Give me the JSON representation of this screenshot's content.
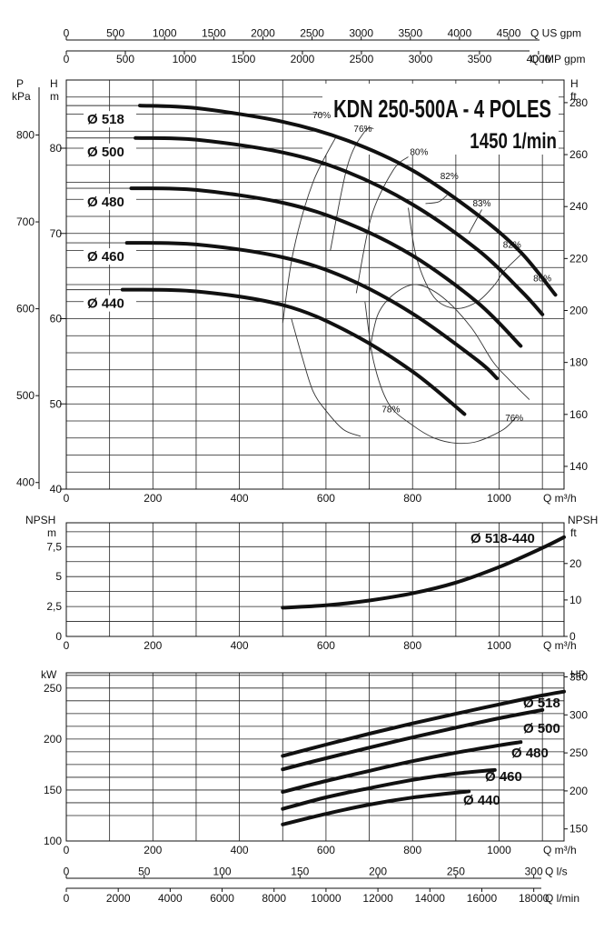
{
  "chart_data": [
    {
      "type": "line",
      "title": "KDN 250-500A - 4 POLES",
      "subtitle": "1450 1/min",
      "top_axes": [
        {
          "label": "Q US gpm",
          "ticks": [
            0,
            500,
            1000,
            1500,
            2000,
            2500,
            3000,
            3500,
            4000,
            4500
          ]
        },
        {
          "label": "Q IMP gpm",
          "ticks": [
            0,
            500,
            1000,
            1500,
            2000,
            2500,
            3000,
            3500,
            4000
          ]
        }
      ],
      "xlabel": "Q m³/h",
      "xlim": [
        0,
        1150
      ],
      "x_ticks": [
        0,
        200,
        400,
        600,
        800,
        1000
      ],
      "ylabel": "H m",
      "ylim": [
        40,
        88
      ],
      "y_ticks": [
        40,
        50,
        60,
        70,
        80
      ],
      "y_left_outer_label": "P kPa",
      "y_left_outer_ticks": [
        400,
        500,
        600,
        700,
        800
      ],
      "y_right_label": "H ft",
      "y_right_ticks": [
        140,
        160,
        180,
        200,
        220,
        240,
        260,
        280
      ],
      "series": [
        {
          "name": "Ø 518",
          "x": [
            0,
            300,
            500,
            650,
            800,
            950,
            1050,
            1130
          ],
          "y": [
            85,
            84.7,
            83.1,
            80.9,
            77.4,
            72.2,
            67.8,
            62.8
          ]
        },
        {
          "name": "Ø 500",
          "x": [
            0,
            300,
            500,
            650,
            800,
            950,
            1050,
            1100
          ],
          "y": [
            81.2,
            81,
            79.5,
            77.2,
            73.4,
            68.1,
            63.3,
            60.5
          ]
        },
        {
          "name": "Ø 480",
          "x": [
            0,
            300,
            500,
            650,
            800,
            950,
            1050
          ],
          "y": [
            75.3,
            75.1,
            73.6,
            71.2,
            67.4,
            61.9,
            56.8
          ]
        },
        {
          "name": "Ø 460",
          "x": [
            0,
            300,
            500,
            650,
            800,
            950,
            995
          ],
          "y": [
            68.9,
            68.7,
            67.2,
            64.7,
            60.6,
            55.1,
            53
          ]
        },
        {
          "name": "Ø 440",
          "x": [
            0,
            300,
            500,
            650,
            800,
            920
          ],
          "y": [
            63.4,
            63.2,
            61.6,
            58.5,
            53.8,
            48.8
          ]
        }
      ],
      "efficiency_labels": [
        "70%",
        "76%",
        "80%",
        "82%",
        "83%",
        "82%",
        "80%",
        "78%",
        "76%"
      ]
    },
    {
      "type": "line",
      "xlabel": "Q m³/h",
      "xlim": [
        0,
        1150
      ],
      "x_ticks": [
        0,
        200,
        400,
        600,
        800,
        1000
      ],
      "ylabel": "NPSH m",
      "ylim": [
        0,
        9.5
      ],
      "y_ticks": [
        "0",
        "2,5",
        "5",
        "7,5"
      ],
      "y_right_label": "NPSH ft",
      "y_right_ticks": [
        0,
        10,
        20
      ],
      "series": [
        {
          "name": "Ø 518-440",
          "x": [
            500,
            600,
            700,
            800,
            900,
            1000,
            1100,
            1150
          ],
          "y": [
            2.4,
            2.6,
            3.0,
            3.6,
            4.5,
            5.8,
            7.4,
            8.3
          ]
        }
      ]
    },
    {
      "type": "line",
      "xlabel": "Q m³/h",
      "xlim": [
        0,
        1150
      ],
      "x_ticks": [
        0,
        200,
        400,
        600,
        800,
        1000
      ],
      "ylabel": "kW",
      "ylim": [
        100,
        265
      ],
      "y_ticks": [
        100,
        150,
        200,
        250
      ],
      "y_right_label": "HP",
      "y_right_ticks": [
        150,
        200,
        250,
        300,
        350
      ],
      "bottom_axes": [
        {
          "label": "Q l/s",
          "ticks": [
            0,
            50,
            100,
            150,
            200,
            250,
            300
          ]
        },
        {
          "label": "Q l/min",
          "ticks": [
            0,
            2000,
            4000,
            6000,
            8000,
            10000,
            12000,
            14000,
            16000,
            18000
          ]
        }
      ],
      "series": [
        {
          "name": "Ø 518",
          "x": [
            500,
            600,
            700,
            800,
            900,
            1000,
            1100,
            1150
          ],
          "y": [
            183.5,
            194.5,
            205.2,
            215.3,
            224.8,
            234,
            242.8,
            246.5
          ]
        },
        {
          "name": "Ø 500",
          "x": [
            500,
            600,
            700,
            800,
            900,
            1000,
            1100
          ],
          "y": [
            170.3,
            181.2,
            191.6,
            201.6,
            211.2,
            220.4,
            228.5
          ]
        },
        {
          "name": "Ø 480",
          "x": [
            500,
            600,
            700,
            800,
            900,
            1000,
            1050
          ],
          "y": [
            148.2,
            158.9,
            168.8,
            178.3,
            186.6,
            193.8,
            197
          ]
        },
        {
          "name": "Ø 460",
          "x": [
            500,
            600,
            700,
            800,
            900,
            990
          ],
          "y": [
            131.5,
            142.8,
            151.8,
            159.9,
            166.1,
            169.7
          ]
        },
        {
          "name": "Ø 440",
          "x": [
            500,
            600,
            700,
            800,
            930
          ],
          "y": [
            116.2,
            126.6,
            135.7,
            142.6,
            148.7
          ]
        }
      ]
    }
  ]
}
